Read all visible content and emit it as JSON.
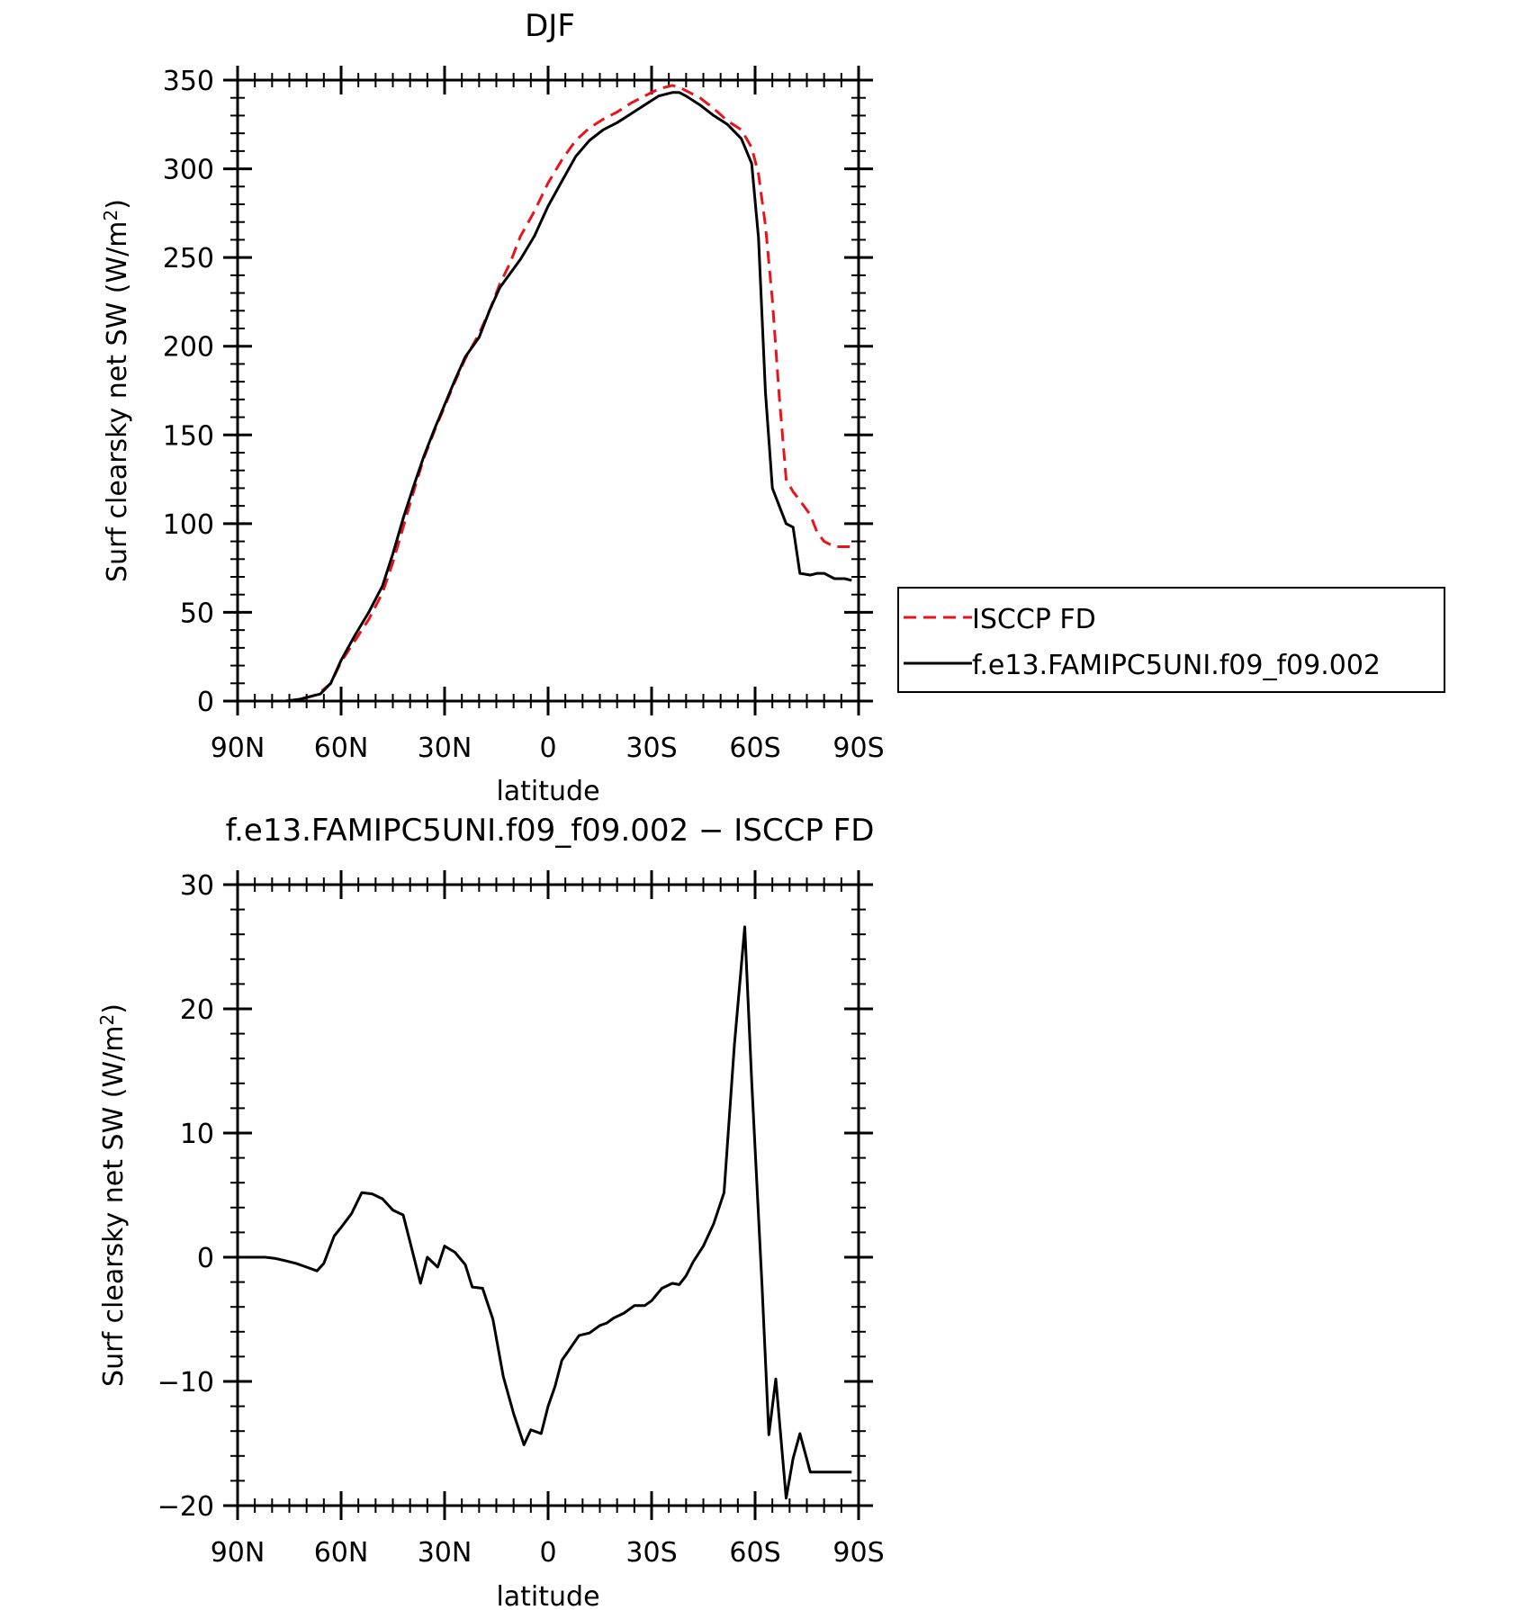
{
  "colors": {
    "obs": "#e8141c",
    "model": "#000000",
    "axes": "#000000"
  },
  "legend": {
    "items": [
      "ISCCP FD",
      "f.e13.FAMIPC5UNI.f09_f09.002"
    ]
  },
  "chart_data": [
    {
      "type": "line",
      "title": "DJF",
      "xlabel": "latitude",
      "ylabel": "Surf clearsky net SW (W/m²)",
      "ylabel_main": "Surf clearsky net SW (W/m",
      "ylabel_sup": "2",
      "ylabel_end": ")",
      "xlim": [
        90,
        -90
      ],
      "ylim": [
        0,
        350
      ],
      "xticks": [
        90,
        60,
        30,
        0,
        -30,
        -60,
        -90
      ],
      "xtick_labels": [
        "90N",
        "60N",
        "30N",
        "0",
        "30S",
        "60S",
        "90S"
      ],
      "yticks": [
        0,
        50,
        100,
        150,
        200,
        250,
        300,
        350
      ],
      "ytick_labels": [
        "0",
        "50",
        "100",
        "150",
        "200",
        "250",
        "300",
        "350"
      ],
      "legend_position": "right",
      "series": [
        {
          "name": "ISCCP FD",
          "style": "dashed",
          "x": [
            88,
            80,
            76,
            72,
            68,
            66,
            63,
            60,
            56,
            52,
            48,
            45,
            42,
            39,
            36,
            33,
            30,
            27,
            24,
            20,
            17,
            14,
            11,
            8,
            4,
            0,
            -4,
            -8,
            -12,
            -16,
            -20,
            -24,
            -28,
            -32,
            -36,
            -38,
            -40,
            -44,
            -48,
            -52,
            -56,
            -59,
            -61,
            -63,
            -65,
            -67,
            -69,
            -71,
            -73,
            -76,
            -78,
            -80,
            -83,
            -86,
            -88
          ],
          "values": [
            0,
            0,
            0,
            1,
            3,
            5,
            10,
            22,
            34,
            46,
            61,
            78,
            98,
            118,
            137,
            152,
            166,
            180,
            193,
            207,
            220,
            235,
            247,
            262,
            276,
            292,
            305,
            316,
            323,
            328,
            332,
            337,
            341,
            345,
            347,
            346,
            344,
            340,
            334,
            327,
            322,
            312,
            297,
            268,
            226,
            172,
            125,
            118,
            113,
            105,
            95,
            90,
            87,
            87,
            87
          ]
        },
        {
          "name": "f.e13.FAMIPC5UNI.f09_f09.002",
          "style": "solid",
          "x": [
            88,
            80,
            76,
            72,
            68,
            66,
            63,
            60,
            56,
            52,
            48,
            45,
            42,
            39,
            36,
            33,
            30,
            27,
            24,
            20,
            17,
            14,
            11,
            8,
            4,
            0,
            -4,
            -8,
            -12,
            -16,
            -20,
            -24,
            -28,
            -32,
            -36,
            -38,
            -40,
            -44,
            -48,
            -52,
            -56,
            -59,
            -61,
            -63,
            -65,
            -67,
            -69,
            -71,
            -73,
            -76,
            -78,
            -80,
            -83,
            -86,
            -88
          ],
          "values": [
            0,
            0,
            0,
            1,
            3,
            4,
            10,
            23,
            37,
            50,
            65,
            83,
            103,
            121,
            138,
            153,
            167,
            181,
            194,
            205,
            220,
            233,
            241,
            249,
            262,
            279,
            293,
            307,
            316,
            322,
            326,
            331,
            336,
            341,
            343,
            343,
            341,
            336,
            330,
            325,
            317,
            303,
            261,
            174,
            120,
            110,
            100,
            98,
            72,
            71,
            72,
            72,
            69,
            69,
            68
          ]
        }
      ]
    },
    {
      "type": "line",
      "title": "f.e13.FAMIPC5UNI.f09_f09.002 − ISCCP FD",
      "xlabel": "latitude",
      "ylabel": "Surf clearsky net SW (W/m²)",
      "ylabel_main": "Surf clearsky net SW (W/m",
      "ylabel_sup": "2",
      "ylabel_end": ")",
      "xlim": [
        90,
        -90
      ],
      "ylim": [
        -20,
        30
      ],
      "xticks": [
        90,
        60,
        30,
        0,
        -30,
        -60,
        -90
      ],
      "xtick_labels": [
        "90N",
        "60N",
        "30N",
        "0",
        "30S",
        "60S",
        "90S"
      ],
      "yticks": [
        -20,
        -10,
        0,
        10,
        20,
        30
      ],
      "ytick_labels": [
        "−20",
        "−10",
        "0",
        "10",
        "20",
        "30"
      ],
      "series": [
        {
          "name": "",
          "style": "solid",
          "x": [
            88,
            82,
            79,
            76,
            73,
            70,
            67,
            65,
            62,
            60,
            57,
            54,
            51,
            48,
            45,
            42,
            40,
            37,
            35,
            32,
            30,
            27,
            24,
            22,
            19,
            16,
            13,
            10,
            7,
            5,
            2,
            0,
            -2,
            -4,
            -6,
            -9,
            -12,
            -15,
            -17,
            -19,
            -22,
            -25,
            -28,
            -30,
            -33,
            -36,
            -38,
            -40,
            -42,
            -45,
            -48,
            -51,
            -54,
            -57,
            -59,
            -62,
            -64,
            -66,
            -69,
            -71,
            -73,
            -76,
            -78,
            -80,
            -82,
            -84,
            -86,
            -88
          ],
          "values": [
            0,
            0,
            -0.1,
            -0.3,
            -0.5,
            -0.8,
            -1.1,
            -0.5,
            1.7,
            2.4,
            3.5,
            5.2,
            5.1,
            4.7,
            3.8,
            3.4,
            1.2,
            -2.1,
            0,
            -0.8,
            0.9,
            0.4,
            -0.6,
            -2.4,
            -2.5,
            -5,
            -9.6,
            -12.6,
            -15.1,
            -13.9,
            -14.2,
            -12,
            -10.4,
            -8.3,
            -7.5,
            -6.3,
            -6.1,
            -5.5,
            -5.3,
            -4.9,
            -4.5,
            -3.9,
            -3.9,
            -3.5,
            -2.5,
            -2.1,
            -2.2,
            -1.5,
            -0.4,
            0.9,
            2.7,
            5.2,
            17.1,
            26.6,
            14.2,
            -2.3,
            -14.3,
            -9.8,
            -19.4,
            -16.2,
            -14.2,
            -17.3,
            -17.3,
            -17.3,
            -17.3,
            -17.3,
            -17.3,
            -17.3
          ]
        }
      ]
    }
  ]
}
